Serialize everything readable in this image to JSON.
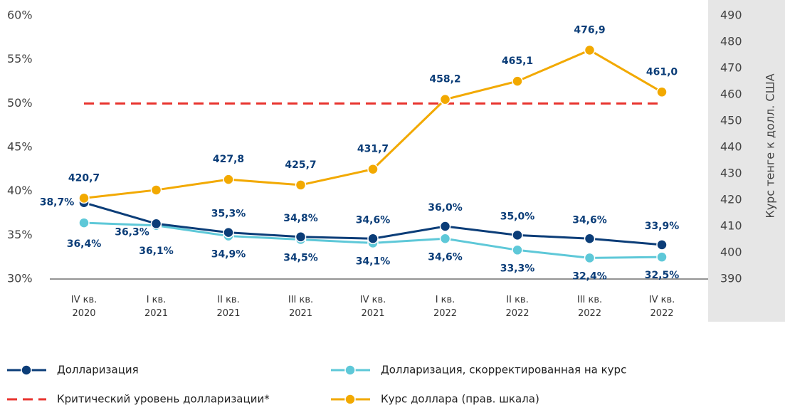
{
  "chart_data": {
    "type": "line",
    "categories": [
      "IV кв.\n2020",
      "I кв.\n2021",
      "II кв.\n2021",
      "III кв.\n2021",
      "IV кв.\n2021",
      "I кв.\n2022",
      "II кв.\n2022",
      "III кв.\n2022",
      "IV кв.\n2022"
    ],
    "series": [
      {
        "name": "Долларизация",
        "color": "#0b3d78",
        "values": [
          38.7,
          36.3,
          35.3,
          34.8,
          34.6,
          36.0,
          35.0,
          34.6,
          33.9
        ],
        "value_labels": [
          "38,7%",
          "36,3%",
          "35,3%",
          "34,8%",
          "34,6%",
          "36,0%",
          "35,0%",
          "34,6%",
          "33,9%"
        ]
      },
      {
        "name": "Долларизация, скорректированная на курс",
        "color": "#5ec8d8",
        "values": [
          36.4,
          36.1,
          34.9,
          34.5,
          34.1,
          34.6,
          33.3,
          32.4,
          32.5
        ],
        "value_labels": [
          "36,4%",
          "36,1%",
          "34,9%",
          "34,5%",
          "34,1%",
          "34,6%",
          "33,3%",
          "32,4%",
          "32,5%"
        ]
      },
      {
        "name": "Критический уровень долларизации*",
        "color": "#e8342f",
        "style": "dashed",
        "values": [
          50,
          50,
          50,
          50,
          50,
          50,
          50,
          50,
          50
        ]
      },
      {
        "name": "Курс доллара (прав. шкала)",
        "color": "#f2a900",
        "axis": "y2",
        "values": [
          420.7,
          423.8,
          427.8,
          425.7,
          431.7,
          458.2,
          465.1,
          476.9,
          461.0
        ],
        "value_labels": [
          "420,7",
          null,
          "427,8",
          "425,7",
          "431,7",
          "458,2",
          "465,1",
          "476,9",
          "461,0"
        ]
      }
    ],
    "ylim": [
      30,
      60
    ],
    "yticks": [
      {
        "value": 30,
        "label": "30%"
      },
      {
        "value": 35,
        "label": "35%"
      },
      {
        "value": 40,
        "label": "40%"
      },
      {
        "value": 45,
        "label": "45%"
      },
      {
        "value": 50,
        "label": "50%"
      },
      {
        "value": 55,
        "label": "55%"
      },
      {
        "value": 60,
        "label": "60%"
      }
    ],
    "y2lim": [
      390,
      490
    ],
    "y2ticks": [
      390,
      400,
      410,
      420,
      430,
      440,
      450,
      460,
      470,
      480,
      490
    ],
    "y2label": "Курс тенге к долл. США"
  }
}
